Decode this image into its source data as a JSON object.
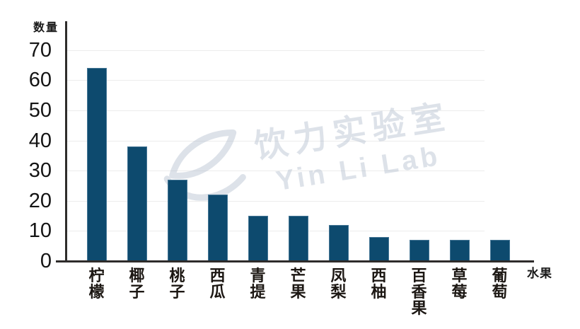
{
  "chart_data": {
    "type": "bar",
    "title": "",
    "categories": [
      "柠檬",
      "椰子",
      "桃子",
      "西瓜",
      "青提",
      "芒果",
      "凤梨",
      "西柚",
      "百香果",
      "草莓",
      "葡萄"
    ],
    "values": [
      64,
      38,
      27,
      22,
      15,
      15,
      12,
      8,
      7,
      7,
      7
    ],
    "xlabel": "水果",
    "ylabel": "数量",
    "yticks": [
      0,
      10,
      20,
      30,
      40,
      50,
      60,
      70
    ],
    "ylim": [
      0,
      75
    ],
    "grid": true,
    "legend": false,
    "bar_color": "#0d4a6e",
    "axis_color": "#2e2c2b",
    "gridline_color": "#ececec"
  },
  "watermark": {
    "line1": "饮力实验室",
    "line2": "Yin Li Lab",
    "logo": "leaf-swoosh-icon",
    "color": "#e1e5eb"
  }
}
